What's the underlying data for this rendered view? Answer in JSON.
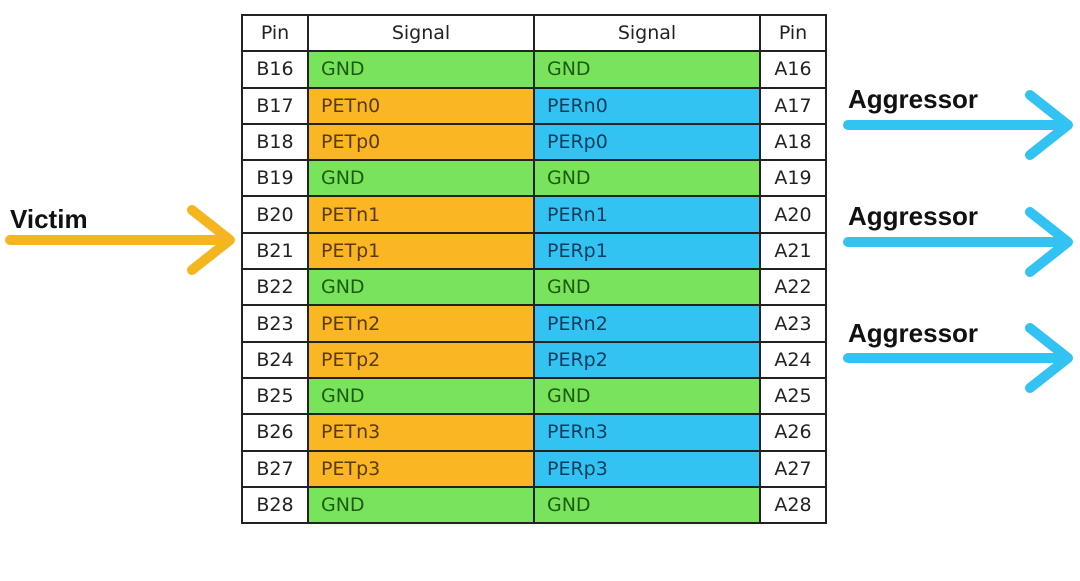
{
  "header": {
    "pin_left": "Pin",
    "signal_left": "Signal",
    "signal_right": "Signal",
    "pin_right": "Pin"
  },
  "rows": [
    {
      "pin_b": "B16",
      "sig_b": "GND",
      "sig_a": "GND",
      "pin_a": "A16",
      "type": "gnd"
    },
    {
      "pin_b": "B17",
      "sig_b": "PETn0",
      "sig_a": "PERn0",
      "pin_a": "A17",
      "type": "sig"
    },
    {
      "pin_b": "B18",
      "sig_b": "PETp0",
      "sig_a": "PERp0",
      "pin_a": "A18",
      "type": "sig"
    },
    {
      "pin_b": "B19",
      "sig_b": "GND",
      "sig_a": "GND",
      "pin_a": "A19",
      "type": "gnd"
    },
    {
      "pin_b": "B20",
      "sig_b": "PETn1",
      "sig_a": "PERn1",
      "pin_a": "A20",
      "type": "sig"
    },
    {
      "pin_b": "B21",
      "sig_b": "PETp1",
      "sig_a": "PERp1",
      "pin_a": "A21",
      "type": "sig"
    },
    {
      "pin_b": "B22",
      "sig_b": "GND",
      "sig_a": "GND",
      "pin_a": "A22",
      "type": "gnd"
    },
    {
      "pin_b": "B23",
      "sig_b": "PETn2",
      "sig_a": "PERn2",
      "pin_a": "A23",
      "type": "sig"
    },
    {
      "pin_b": "B24",
      "sig_b": "PETp2",
      "sig_a": "PERp2",
      "pin_a": "A24",
      "type": "sig"
    },
    {
      "pin_b": "B25",
      "sig_b": "GND",
      "sig_a": "GND",
      "pin_a": "A25",
      "type": "gnd"
    },
    {
      "pin_b": "B26",
      "sig_b": "PETn3",
      "sig_a": "PERn3",
      "pin_a": "A26",
      "type": "sig"
    },
    {
      "pin_b": "B27",
      "sig_b": "PETp3",
      "sig_a": "PERp3",
      "pin_a": "A27",
      "type": "sig"
    },
    {
      "pin_b": "B28",
      "sig_b": "GND",
      "sig_a": "GND",
      "pin_a": "A28",
      "type": "gnd"
    }
  ],
  "labels": {
    "victim": "Victim",
    "aggressor": "Aggressor"
  },
  "colors": {
    "gnd": "#79e35c",
    "tx": "#fbb624",
    "rx": "#33c3f2",
    "victim_arrow": "#f5b51f",
    "aggressor_arrow": "#33c3f2"
  }
}
